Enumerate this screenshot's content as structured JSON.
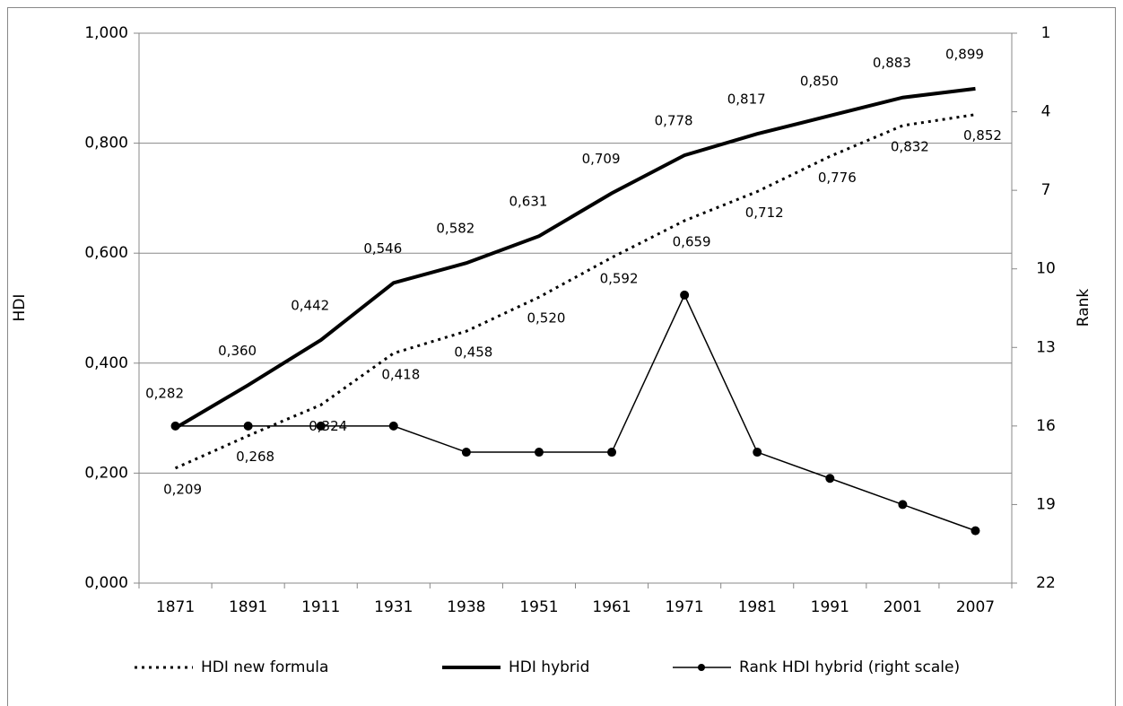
{
  "chart_data": {
    "type": "line",
    "categories": [
      "1871",
      "1891",
      "1911",
      "1931",
      "1938",
      "1951",
      "1961",
      "1971",
      "1981",
      "1991",
      "2001",
      "2007"
    ],
    "series": [
      {
        "name": "HDI new formula",
        "color": "#000000",
        "style": "dotted",
        "line_width": 3,
        "values": [
          0.209,
          0.268,
          0.324,
          0.418,
          0.458,
          0.52,
          0.592,
          0.659,
          0.712,
          0.776,
          0.832,
          0.852
        ],
        "value_labels": [
          "0,209",
          "0,268",
          "0,324",
          "0,418",
          "0,458",
          "0,520",
          "0,592",
          "0,659",
          "0,712",
          "0,776",
          "0,832",
          "0,852"
        ]
      },
      {
        "name": "HDI hybrid",
        "color": "#000000",
        "style": "solid",
        "line_width": 4,
        "values": [
          0.282,
          0.36,
          0.442,
          0.546,
          0.582,
          0.631,
          0.709,
          0.778,
          0.817,
          0.85,
          0.883,
          0.899
        ],
        "value_labels": [
          "0,282",
          "0,360",
          "0,442",
          "0,546",
          "0,582",
          "0,631",
          "0,709",
          "0,778",
          "0,817",
          "0,850",
          "0,883",
          "0,899"
        ]
      },
      {
        "name": "Rank HDI hybrid (right scale)",
        "color": "#000000",
        "style": "solid",
        "line_width": 1.5,
        "marker": true,
        "axis": "y2",
        "values": [
          16,
          16,
          16,
          16,
          17,
          17,
          17,
          11,
          17,
          18,
          19,
          20
        ]
      }
    ],
    "ylabel": "HDI",
    "y2label": "Rank",
    "ylim": [
      0,
      1
    ],
    "yticks": [
      {
        "value": 0,
        "label": "0,000"
      },
      {
        "value": 0.2,
        "label": "0,200"
      },
      {
        "value": 0.4,
        "label": "0,400"
      },
      {
        "value": 0.6,
        "label": "0,600"
      },
      {
        "value": 0.8,
        "label": "0,800"
      },
      {
        "value": 1,
        "label": "1,000"
      }
    ],
    "y2lim": [
      22,
      1
    ],
    "y2ticks": [
      1,
      4,
      7,
      10,
      13,
      16,
      19,
      22
    ],
    "grid": true,
    "legend": "bottom"
  }
}
